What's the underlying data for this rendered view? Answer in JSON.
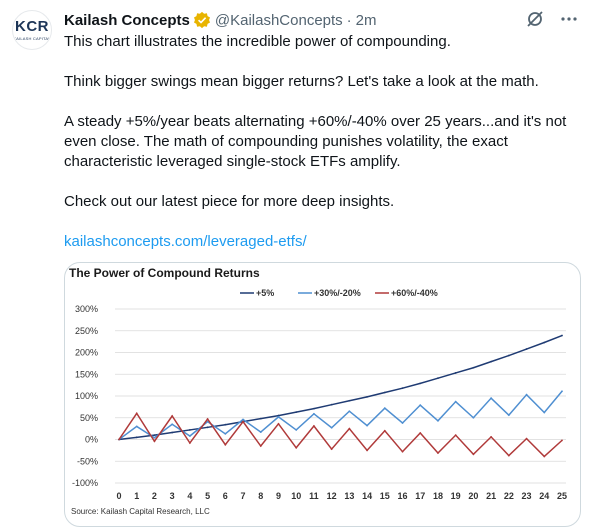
{
  "author": {
    "display_name": "Kailash Concepts",
    "handle": "@KailashConcepts",
    "separator": "·",
    "time": "2m",
    "avatar_text": "KCR",
    "avatar_subtext": "KAILASH CAPITAL"
  },
  "tweet": {
    "p1": "This chart illustrates the incredible power of compounding.",
    "p2": "Think bigger swings mean bigger returns? Let's take a look at the math.",
    "p3": "A steady +5%/year beats alternating +60%/-40% over 25 years...and it's not even close. The math of compounding punishes volatility, the exact characteristic leveraged single-stock ETFs amplify.",
    "p4": "Check out our latest piece for more deep insights.",
    "link": "kailashconcepts.com/leveraged-etfs/"
  },
  "icons": {
    "verified": "verified-badge-icon",
    "grok": "grok-icon",
    "more": "more-icon"
  },
  "colors": {
    "link": "#1d9bf0",
    "verified": "#e8b400",
    "series_5": "#1f3b73",
    "series_30": "#4f8fd1",
    "series_60": "#b03a3a"
  },
  "chart_data": {
    "type": "line",
    "title": "The Power of Compound Returns",
    "source": "Source: Kailash Capital Research, LLC",
    "x": [
      0,
      1,
      2,
      3,
      4,
      5,
      6,
      7,
      8,
      9,
      10,
      11,
      12,
      13,
      14,
      15,
      16,
      17,
      18,
      19,
      20,
      21,
      22,
      23,
      24,
      25
    ],
    "ylim": [
      -100,
      300
    ],
    "yticks": [
      "300%",
      "250%",
      "200%",
      "150%",
      "100%",
      "50%",
      "0%",
      "-50%",
      "-100%"
    ],
    "ytick_values": [
      300,
      250,
      200,
      150,
      100,
      50,
      0,
      -50,
      -100
    ],
    "grid": true,
    "legend": "top",
    "series": [
      {
        "name": "+5%",
        "values": [
          0,
          5,
          10,
          16,
          22,
          28,
          34,
          41,
          48,
          55,
          63,
          71,
          80,
          89,
          98,
          108,
          118,
          129,
          141,
          153,
          165,
          179,
          193,
          208,
          223,
          239
        ]
      },
      {
        "name": "+30%/-20%",
        "values": [
          0,
          30,
          4,
          35,
          8,
          41,
          13,
          46,
          17,
          52,
          22,
          59,
          27,
          65,
          32,
          72,
          38,
          79,
          43,
          87,
          50,
          95,
          56,
          103,
          62,
          111
        ]
      },
      {
        "name": "+60%/-40%",
        "values": [
          0,
          60,
          -4,
          54,
          -8,
          47,
          -12,
          41,
          -15,
          36,
          -19,
          31,
          -22,
          25,
          -25,
          20,
          -28,
          15,
          -31,
          10,
          -34,
          6,
          -37,
          2,
          -39,
          -2
        ]
      }
    ]
  }
}
